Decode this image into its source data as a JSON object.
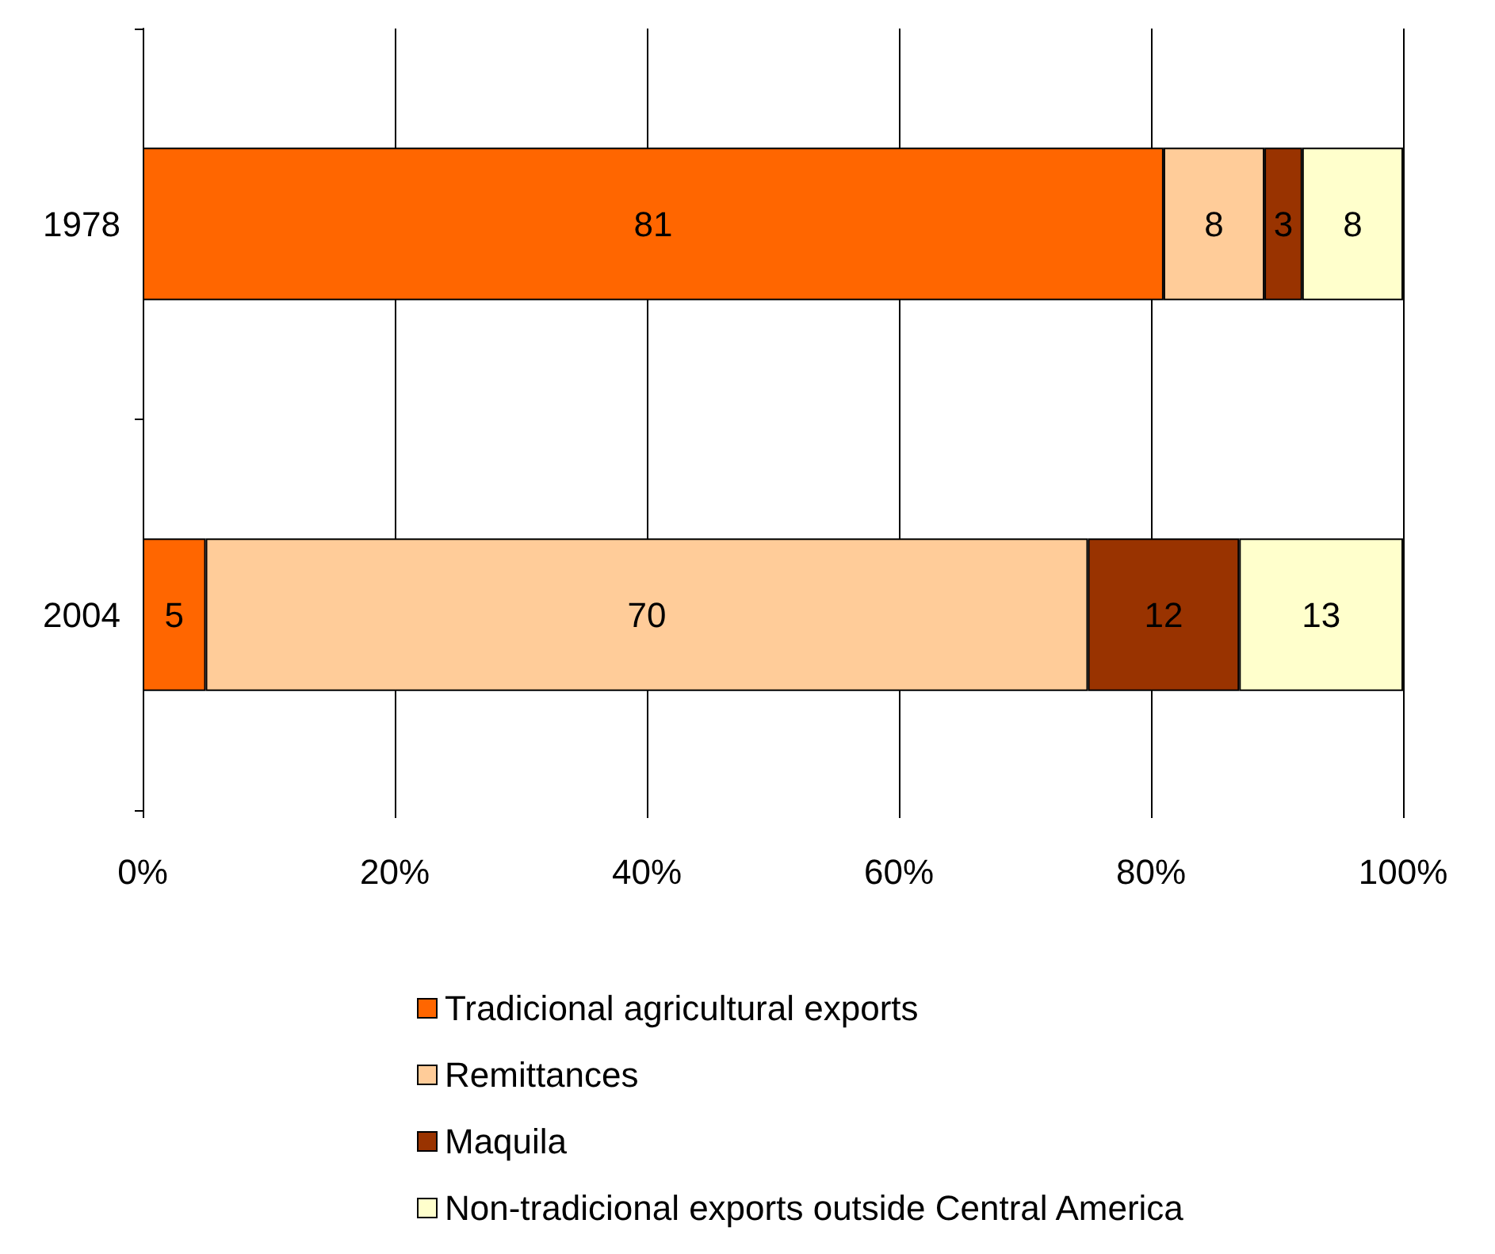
{
  "chart_data": {
    "type": "bar",
    "orientation": "horizontal",
    "stacked": true,
    "categories": [
      "1978",
      "2004"
    ],
    "series": [
      {
        "name": "Tradicional agricultural exports",
        "color": "#ff6600",
        "values": [
          81,
          5
        ]
      },
      {
        "name": "Remittances",
        "color": "#ffcc99",
        "values": [
          8,
          70
        ]
      },
      {
        "name": "Maquila",
        "color": "#993300",
        "values": [
          3,
          12
        ]
      },
      {
        "name": "Non-tradicional exports outside Central America",
        "color": "#ffffcc",
        "values": [
          8,
          13
        ]
      }
    ],
    "xlim": [
      0,
      100
    ],
    "xticks": [
      {
        "value": 0,
        "label": "0%"
      },
      {
        "value": 20,
        "label": "20%"
      },
      {
        "value": 40,
        "label": "40%"
      },
      {
        "value": 60,
        "label": "60%"
      },
      {
        "value": 80,
        "label": "80%"
      },
      {
        "value": 100,
        "label": "100%"
      }
    ],
    "grid": "x",
    "legend": "bottom",
    "data_labels": true
  }
}
